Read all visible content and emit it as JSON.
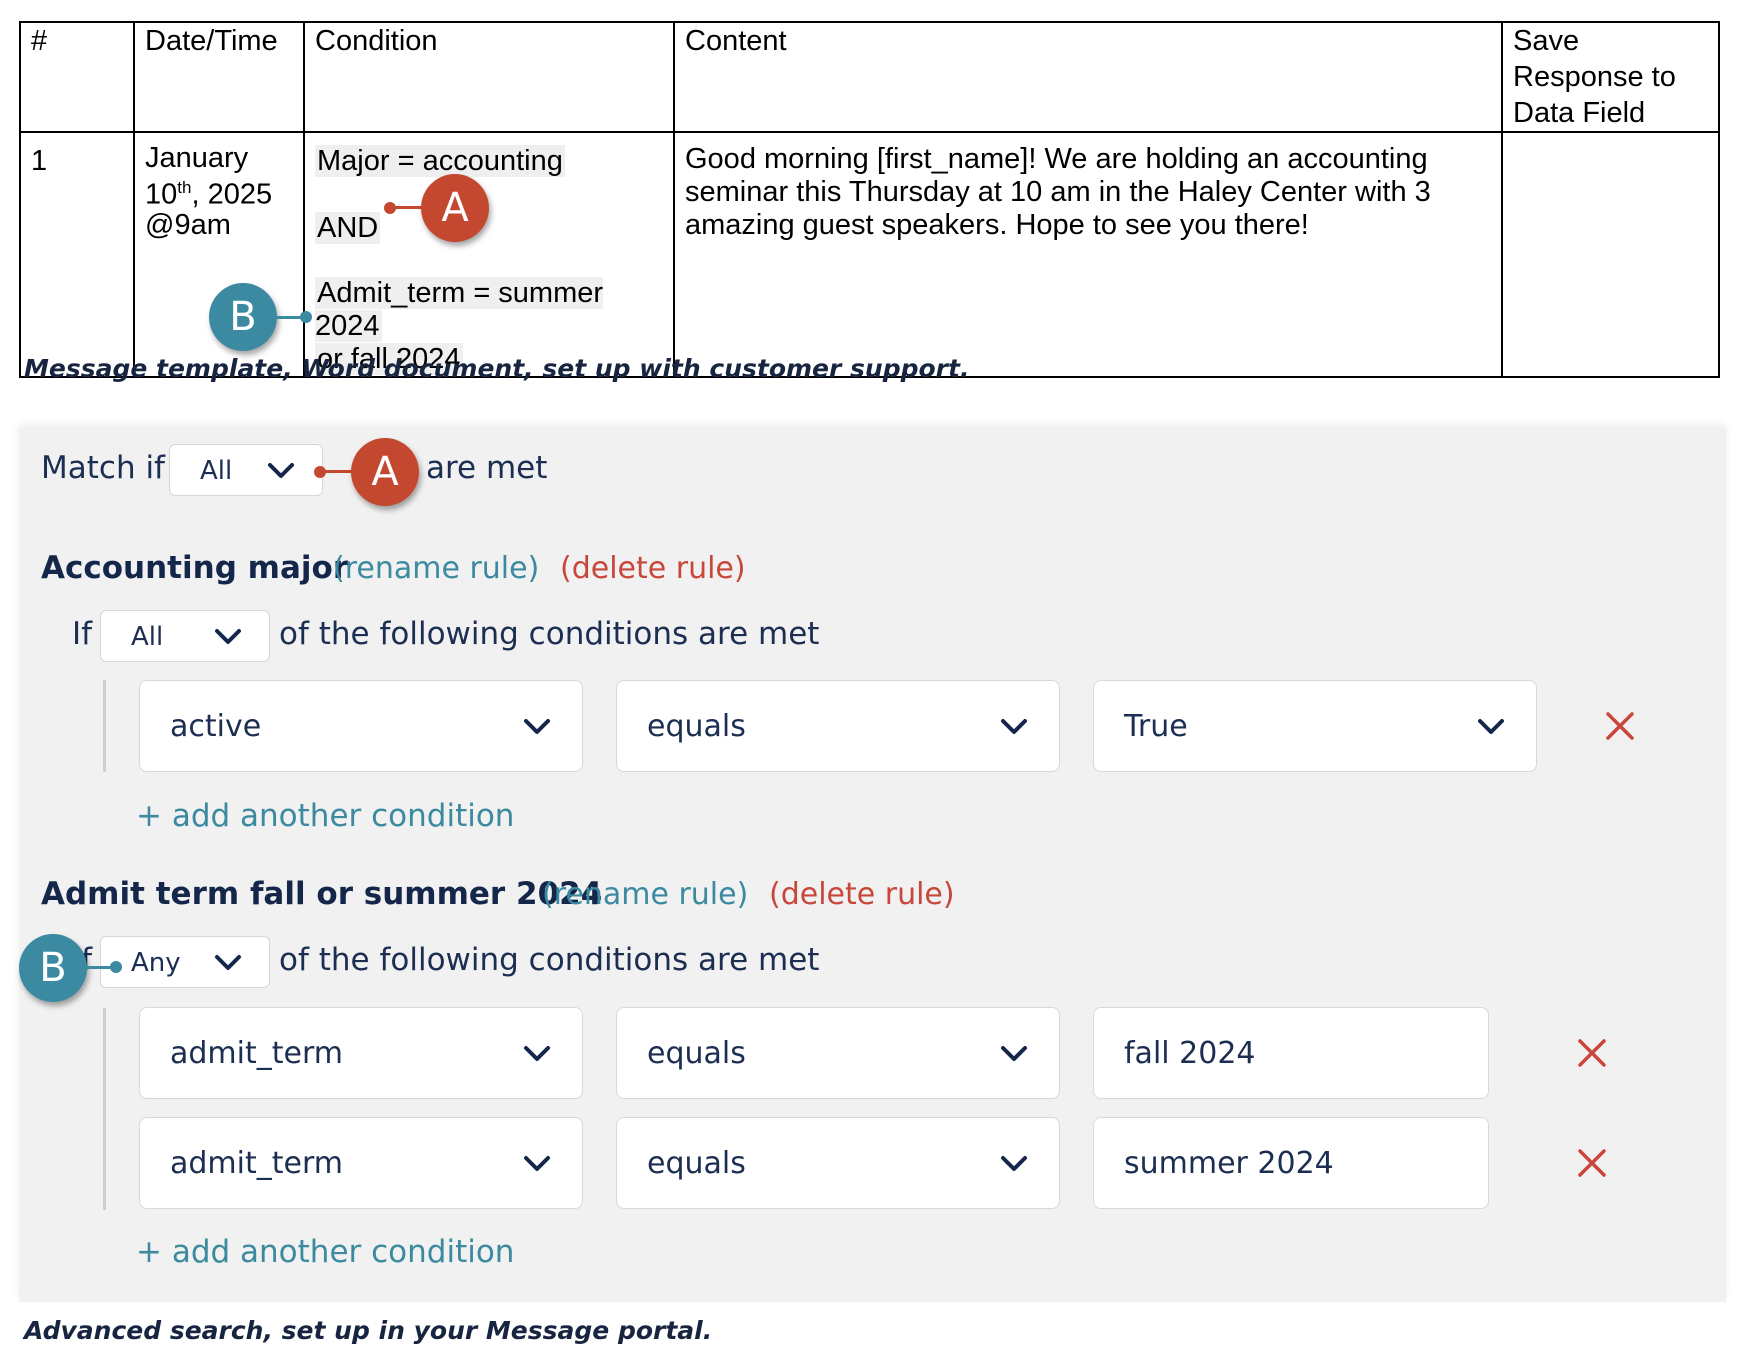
{
  "doc_table": {
    "headers": [
      "#",
      "Date/Time",
      "Condition",
      "Content",
      "Save Response to Data Field"
    ],
    "row": {
      "number": "1",
      "date_line1": "January",
      "date_day": "10",
      "date_suffix": "th",
      "date_year": ", 2025",
      "date_time": "@9am",
      "condition_line1": "Major = accounting",
      "condition_and": "AND",
      "condition_line3": "Admit_term = summer 2024",
      "condition_line4": "or fall 2024",
      "content": "Good morning [first_name]! We are holding an accounting seminar this Thursday at 10 am in the Haley Center with 3 amazing guest speakers. Hope to see you there!",
      "save_response": ""
    }
  },
  "caption_top": "Message template, Word document, set up with customer support.",
  "portal": {
    "match_prefix": "Match if",
    "match_value": "All",
    "match_suffix": "are met",
    "rules": [
      {
        "title": "Accounting major",
        "rename_label": "(rename rule)",
        "delete_label": "(delete rule)",
        "if_label": "If",
        "if_value": "All",
        "if_suffix": "of the following conditions are met",
        "conditions": [
          {
            "field": "active",
            "operator": "equals",
            "value": "True"
          }
        ],
        "add_label": "+ add another condition"
      },
      {
        "title": "Admit term fall or summer 2024",
        "rename_label": "(rename rule)",
        "delete_label": "(delete rule)",
        "if_label": "If",
        "if_value": "Any",
        "if_suffix": "of the following conditions are met",
        "conditions": [
          {
            "field": "admit_term",
            "operator": "equals",
            "value": "fall 2024"
          },
          {
            "field": "admit_term",
            "operator": "equals",
            "value": "summer 2024"
          }
        ],
        "add_label": "+ add another condition"
      }
    ]
  },
  "caption_bottom": "Advanced search, set up in your Message portal.",
  "markers": {
    "a": "A",
    "b": "B"
  },
  "colors": {
    "navy": "#14264a",
    "teal": "#3c8aa1",
    "red": "#c4482f",
    "panel_bg": "#f1f1f1"
  }
}
